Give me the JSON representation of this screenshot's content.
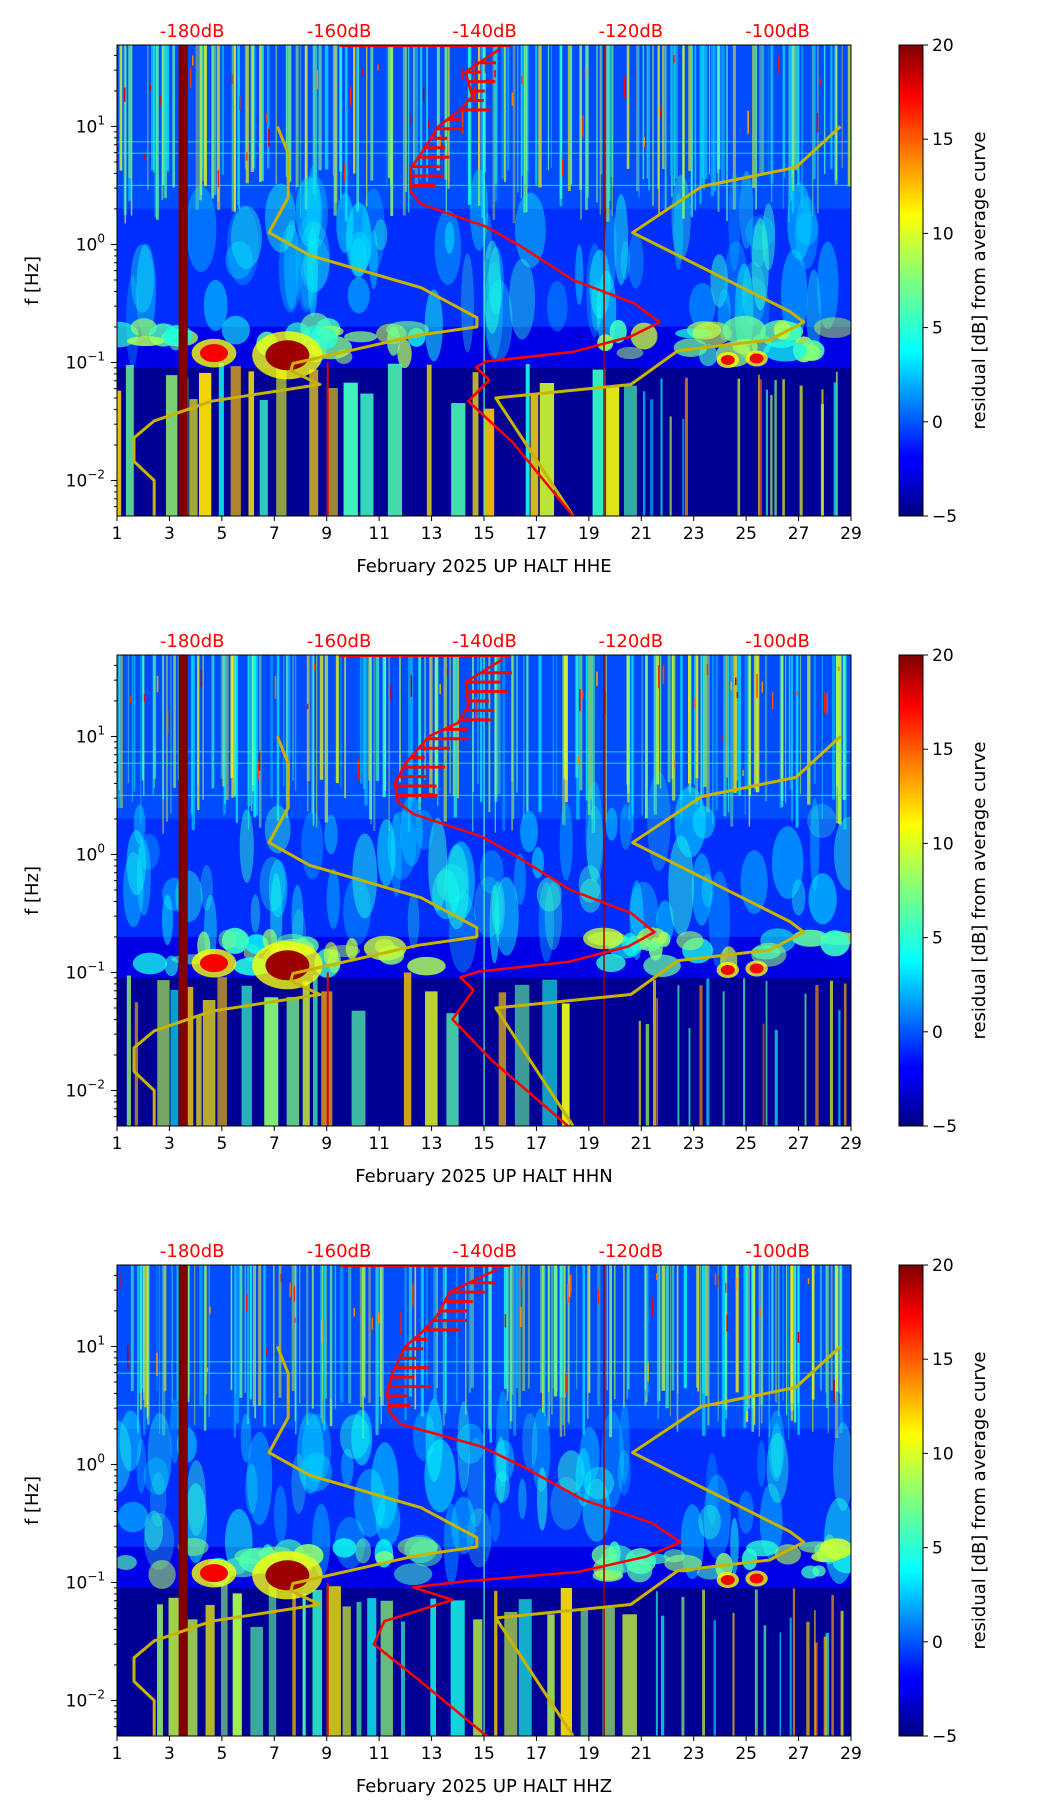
{
  "reference_curves": {
    "low_noise_model": {
      "color": "#c8b400",
      "points": [
        [
          7.12,
          10
        ],
        [
          7.53,
          5.9
        ],
        [
          7.53,
          2.5
        ],
        [
          6.8,
          1.26
        ],
        [
          8.35,
          0.81
        ],
        [
          12.6,
          0.43
        ],
        [
          14.73,
          0.24
        ],
        [
          14.73,
          0.2
        ],
        [
          12.48,
          0.17
        ],
        [
          7.71,
          0.098
        ],
        [
          7.63,
          0.085
        ],
        [
          8.74,
          0.065
        ],
        [
          4.61,
          0.047
        ],
        [
          2.42,
          0.032
        ],
        [
          1.65,
          0.023
        ],
        [
          1.65,
          0.0145
        ],
        [
          2.42,
          0.01
        ],
        [
          2.42,
          0.005
        ]
      ]
    },
    "high_noise_model": {
      "color": "#c8b400",
      "points": [
        [
          28.6,
          10
        ],
        [
          26.9,
          4.5
        ],
        [
          23.3,
          3.1
        ],
        [
          20.67,
          1.26
        ],
        [
          26.67,
          0.27
        ],
        [
          27.2,
          0.22
        ],
        [
          25.9,
          0.155
        ],
        [
          22.4,
          0.126
        ],
        [
          20.6,
          0.065
        ],
        [
          15.45,
          0.05
        ],
        [
          18.4,
          0.005
        ]
      ]
    }
  },
  "chart_data": [
    {
      "type": "heatmap",
      "channel": "HHE",
      "xlabel": "February 2025 UP HALT  HHE",
      "ylabel": "f [Hz]",
      "xlim": [
        1,
        29
      ],
      "ylim": [
        0.005,
        49
      ],
      "yscale": "log",
      "x_ticks": [
        "1",
        "3",
        "5",
        "7",
        "9",
        "11",
        "13",
        "15",
        "17",
        "19",
        "21",
        "23",
        "25",
        "27",
        "29"
      ],
      "y_ticks": [
        {
          "value": 10,
          "base": "10",
          "exp": "1"
        },
        {
          "value": 1,
          "base": "10",
          "exp": "0"
        },
        {
          "value": 0.1,
          "base": "10",
          "exp": "−1"
        },
        {
          "value": 0.01,
          "base": "10",
          "exp": "−2"
        }
      ],
      "top_axis": {
        "labels": [
          "-180dB",
          "-160dB",
          "-140dB",
          "-120dB",
          "-100dB"
        ],
        "positions_day": [
          3.87,
          9.47,
          15.02,
          20.6,
          26.2
        ],
        "color": "#ff0000"
      },
      "colorbar": {
        "label": "residual [dB] from average curve",
        "range": [
          -5,
          20
        ],
        "ticks": [
          "−5",
          "0",
          "5",
          "10",
          "15",
          "20"
        ],
        "colormap": "jet"
      },
      "median_curve": {
        "color": "#ff0000",
        "points": [
          [
            15.58,
            45
          ],
          [
            14.29,
            29
          ],
          [
            14.55,
            18
          ],
          [
            14.03,
            13.5
          ],
          [
            13.26,
            10
          ],
          [
            12.6,
            5.9
          ],
          [
            12.2,
            4.4
          ],
          [
            12.2,
            2.8
          ],
          [
            12.6,
            2.2
          ],
          [
            15.07,
            1.42
          ],
          [
            16.36,
            0.98
          ],
          [
            18.4,
            0.5
          ],
          [
            20.7,
            0.32
          ],
          [
            21.7,
            0.22
          ],
          [
            20.6,
            0.166
          ],
          [
            18.4,
            0.123
          ],
          [
            15.07,
            0.102
          ],
          [
            14.7,
            0.091
          ],
          [
            15.2,
            0.071
          ],
          [
            14.4,
            0.047
          ],
          [
            16.1,
            0.021
          ],
          [
            18.4,
            0.005
          ]
        ]
      }
    },
    {
      "type": "heatmap",
      "channel": "HHN",
      "xlabel": "February 2025 UP HALT  HHN",
      "ylabel": "f [Hz]",
      "xlim": [
        1,
        29
      ],
      "ylim": [
        0.005,
        49
      ],
      "yscale": "log",
      "x_ticks": [
        "1",
        "3",
        "5",
        "7",
        "9",
        "11",
        "13",
        "15",
        "17",
        "19",
        "21",
        "23",
        "25",
        "27",
        "29"
      ],
      "y_ticks": [
        {
          "value": 10,
          "base": "10",
          "exp": "1"
        },
        {
          "value": 1,
          "base": "10",
          "exp": "0"
        },
        {
          "value": 0.1,
          "base": "10",
          "exp": "−1"
        },
        {
          "value": 0.01,
          "base": "10",
          "exp": "−2"
        }
      ],
      "top_axis": {
        "labels": [
          "-180dB",
          "-160dB",
          "-140dB",
          "-120dB",
          "-100dB"
        ],
        "positions_day": [
          3.87,
          9.47,
          15.02,
          20.6,
          26.2
        ],
        "color": "#ff0000"
      },
      "colorbar": {
        "label": "residual [dB] from average curve",
        "range": [
          -5,
          20
        ],
        "ticks": [
          "−5",
          "0",
          "5",
          "10",
          "15",
          "20"
        ],
        "colormap": "jet"
      },
      "median_curve": {
        "color": "#ff0000",
        "points": [
          [
            15.7,
            45
          ],
          [
            14.3,
            29
          ],
          [
            14.4,
            18
          ],
          [
            14.0,
            13
          ],
          [
            12.9,
            10
          ],
          [
            12.0,
            5.9
          ],
          [
            11.6,
            4.0
          ],
          [
            11.7,
            2.8
          ],
          [
            12.3,
            2.2
          ],
          [
            14.9,
            1.42
          ],
          [
            16.2,
            0.98
          ],
          [
            18.3,
            0.5
          ],
          [
            20.6,
            0.32
          ],
          [
            21.5,
            0.22
          ],
          [
            20.5,
            0.166
          ],
          [
            18.2,
            0.123
          ],
          [
            14.8,
            0.102
          ],
          [
            14.1,
            0.091
          ],
          [
            14.6,
            0.071
          ],
          [
            13.8,
            0.04
          ],
          [
            15.3,
            0.018
          ],
          [
            18.2,
            0.005
          ]
        ]
      }
    },
    {
      "type": "heatmap",
      "channel": "HHZ",
      "xlabel": "February 2025 UP HALT  HHZ",
      "ylabel": "f [Hz]",
      "xlim": [
        1,
        29
      ],
      "ylim": [
        0.005,
        49
      ],
      "yscale": "log",
      "x_ticks": [
        "1",
        "3",
        "5",
        "7",
        "9",
        "11",
        "13",
        "15",
        "17",
        "19",
        "21",
        "23",
        "25",
        "27",
        "29"
      ],
      "y_ticks": [
        {
          "value": 10,
          "base": "10",
          "exp": "1"
        },
        {
          "value": 1,
          "base": "10",
          "exp": "0"
        },
        {
          "value": 0.1,
          "base": "10",
          "exp": "−1"
        },
        {
          "value": 0.01,
          "base": "10",
          "exp": "−2"
        }
      ],
      "top_axis": {
        "labels": [
          "-180dB",
          "-160dB",
          "-140dB",
          "-120dB",
          "-100dB"
        ],
        "positions_day": [
          3.87,
          9.47,
          15.02,
          20.6,
          26.2
        ],
        "color": "#ff0000"
      },
      "colorbar": {
        "label": "residual [dB] from average curve",
        "range": [
          -5,
          20
        ],
        "ticks": [
          "−5",
          "0",
          "5",
          "10",
          "15",
          "20"
        ],
        "colormap": "jet"
      },
      "median_curve": {
        "color": "#ff0000",
        "points": [
          [
            15.5,
            45
          ],
          [
            13.7,
            29
          ],
          [
            13.2,
            18
          ],
          [
            12.6,
            13
          ],
          [
            12.0,
            10
          ],
          [
            11.5,
            5.9
          ],
          [
            11.3,
            4.0
          ],
          [
            11.4,
            2.8
          ],
          [
            11.8,
            2.2
          ],
          [
            14.9,
            1.42
          ],
          [
            16.4,
            0.98
          ],
          [
            18.8,
            0.5
          ],
          [
            21.4,
            0.32
          ],
          [
            22.5,
            0.22
          ],
          [
            21.2,
            0.166
          ],
          [
            18.6,
            0.123
          ],
          [
            14.2,
            0.102
          ],
          [
            12.3,
            0.091
          ],
          [
            13.8,
            0.071
          ],
          [
            11.2,
            0.047
          ],
          [
            10.8,
            0.03
          ],
          [
            12.5,
            0.015
          ],
          [
            15.1,
            0.005
          ]
        ]
      }
    }
  ]
}
